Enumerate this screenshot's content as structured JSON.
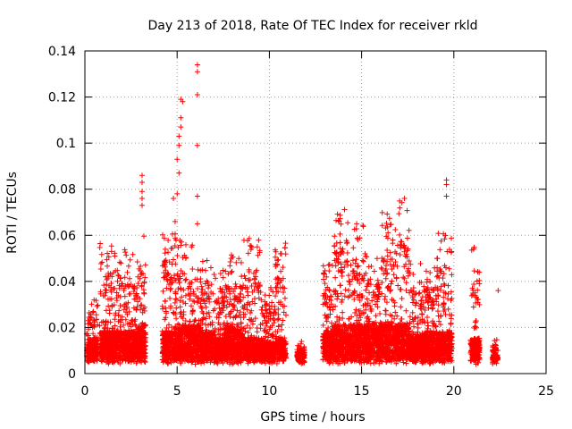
{
  "chart_data": {
    "type": "scatter",
    "title": "Day 213 of 2018, Rate Of TEC Index for receiver rkld",
    "xlabel": "GPS time / hours",
    "ylabel": "ROTI / TECUs",
    "xlim": [
      0,
      25
    ],
    "ylim": [
      0,
      0.14
    ],
    "xticks": [
      0,
      5,
      10,
      15,
      20,
      25
    ],
    "xtick_labels": [
      "0",
      "5",
      "10",
      "15",
      "20",
      "25"
    ],
    "yticks": [
      0,
      0.02,
      0.04,
      0.06,
      0.08,
      0.1,
      0.12,
      0.14
    ],
    "ytick_labels": [
      "0",
      "0.02",
      "0.04",
      "0.06",
      "0.08",
      "0.1",
      "0.12",
      "0.14"
    ],
    "grid": true,
    "marker": "+",
    "series": [
      {
        "name": "ROTI",
        "color": "#ff0000",
        "segments": [
          {
            "x0": 0.1,
            "x1": 0.7,
            "base": 0.012,
            "peak": 0.032
          },
          {
            "x0": 0.8,
            "x1": 1.4,
            "base": 0.014,
            "peak": 0.058
          },
          {
            "x0": 1.4,
            "x1": 2.2,
            "base": 0.014,
            "peak": 0.057
          },
          {
            "x0": 2.2,
            "x1": 2.9,
            "base": 0.014,
            "peak": 0.052
          },
          {
            "x0": 2.9,
            "x1": 3.3,
            "base": 0.016,
            "peak": 0.06
          },
          {
            "x0": 4.2,
            "x1": 4.9,
            "base": 0.014,
            "peak": 0.066
          },
          {
            "x0": 4.9,
            "x1": 5.5,
            "base": 0.016,
            "peak": 0.06
          },
          {
            "x0": 5.5,
            "x1": 6.3,
            "base": 0.016,
            "peak": 0.056
          },
          {
            "x0": 6.3,
            "x1": 7.0,
            "base": 0.014,
            "peak": 0.05
          },
          {
            "x0": 7.0,
            "x1": 7.6,
            "base": 0.012,
            "peak": 0.045
          },
          {
            "x0": 7.6,
            "x1": 8.6,
            "base": 0.015,
            "peak": 0.052
          },
          {
            "x0": 8.6,
            "x1": 9.5,
            "base": 0.012,
            "peak": 0.06
          },
          {
            "x0": 9.5,
            "x1": 10.3,
            "base": 0.011,
            "peak": 0.04
          },
          {
            "x0": 10.3,
            "x1": 10.9,
            "base": 0.012,
            "peak": 0.057
          },
          {
            "x0": 11.5,
            "x1": 11.9,
            "base": 0.008,
            "peak": 0.014
          },
          {
            "x0": 12.9,
            "x1": 13.5,
            "base": 0.014,
            "peak": 0.05
          },
          {
            "x0": 13.5,
            "x1": 14.2,
            "base": 0.016,
            "peak": 0.073
          },
          {
            "x0": 14.2,
            "x1": 15.2,
            "base": 0.016,
            "peak": 0.066
          },
          {
            "x0": 15.2,
            "x1": 16.0,
            "base": 0.016,
            "peak": 0.052
          },
          {
            "x0": 16.0,
            "x1": 16.8,
            "base": 0.016,
            "peak": 0.07
          },
          {
            "x0": 16.8,
            "x1": 17.6,
            "base": 0.016,
            "peak": 0.077
          },
          {
            "x0": 17.6,
            "x1": 18.4,
            "base": 0.013,
            "peak": 0.048
          },
          {
            "x0": 18.4,
            "x1": 19.1,
            "base": 0.014,
            "peak": 0.05
          },
          {
            "x0": 19.1,
            "x1": 19.9,
            "base": 0.014,
            "peak": 0.063
          },
          {
            "x0": 20.9,
            "x1": 21.4,
            "base": 0.012,
            "peak": 0.055
          },
          {
            "x0": 22.1,
            "x1": 22.4,
            "base": 0.007,
            "peak": 0.016
          }
        ],
        "outliers": [
          {
            "x": 3.1,
            "y": 0.086
          },
          {
            "x": 3.1,
            "y": 0.083
          },
          {
            "x": 3.1,
            "y": 0.079
          },
          {
            "x": 3.1,
            "y": 0.076
          },
          {
            "x": 3.1,
            "y": 0.073
          },
          {
            "x": 4.8,
            "y": 0.076
          },
          {
            "x": 5.0,
            "y": 0.078
          },
          {
            "x": 5.0,
            "y": 0.093
          },
          {
            "x": 5.1,
            "y": 0.087
          },
          {
            "x": 5.1,
            "y": 0.099
          },
          {
            "x": 5.1,
            "y": 0.103
          },
          {
            "x": 5.2,
            "y": 0.107
          },
          {
            "x": 5.2,
            "y": 0.111
          },
          {
            "x": 5.3,
            "y": 0.118
          },
          {
            "x": 5.2,
            "y": 0.119
          },
          {
            "x": 6.1,
            "y": 0.134
          },
          {
            "x": 6.1,
            "y": 0.131
          },
          {
            "x": 6.1,
            "y": 0.121
          },
          {
            "x": 6.1,
            "y": 0.099
          },
          {
            "x": 6.1,
            "y": 0.077
          },
          {
            "x": 6.1,
            "y": 0.065
          },
          {
            "x": 19.6,
            "y": 0.084
          },
          {
            "x": 19.6,
            "y": 0.082
          },
          {
            "x": 19.6,
            "y": 0.077
          },
          {
            "x": 22.4,
            "y": 0.036
          }
        ]
      }
    ]
  }
}
